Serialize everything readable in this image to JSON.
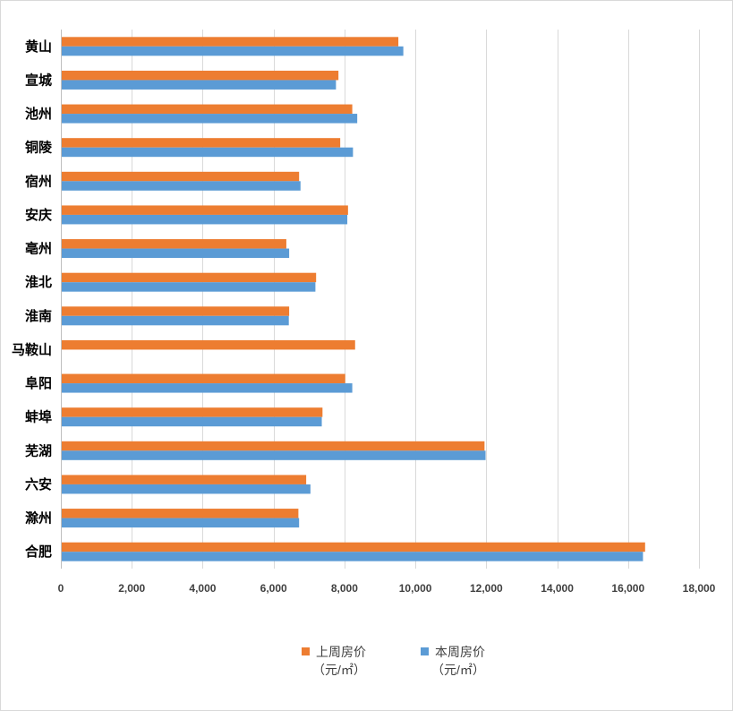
{
  "chart_data": {
    "type": "bar",
    "orientation": "horizontal",
    "categories": [
      "黄山",
      "宣城",
      "池州",
      "铜陵",
      "宿州",
      "安庆",
      "亳州",
      "淮北",
      "淮南",
      "马鞍山",
      "阜阳",
      "蚌埠",
      "芜湖",
      "六安",
      "滁州",
      "合肥"
    ],
    "series": [
      {
        "name": "上周房价（元/㎡）",
        "legend_line1": "上周房价",
        "legend_line2": "（元/㎡）",
        "color": "#ed7d31",
        "values": [
          9520,
          7830,
          8220,
          7880,
          6720,
          8100,
          6360,
          7200,
          6440,
          8300,
          8020,
          7380,
          11950,
          6920,
          6700,
          16480
        ]
      },
      {
        "name": "本周房价（元/㎡）",
        "legend_line1": "本周房价",
        "legend_line2": "（元/㎡）",
        "color": "#5b9bd5",
        "values": [
          9660,
          7760,
          8360,
          8240,
          6760,
          8080,
          6440,
          7180,
          6430,
          null,
          8220,
          7360,
          11980,
          7040,
          6720,
          16420
        ]
      }
    ],
    "x_ticks": [
      "0",
      "2,000",
      "4,000",
      "6,000",
      "8,000",
      "10,000",
      "12,000",
      "14,000",
      "16,000",
      "18,000"
    ],
    "xlim": [
      0,
      18000
    ],
    "grid": "vertical",
    "legend_position": "bottom"
  }
}
